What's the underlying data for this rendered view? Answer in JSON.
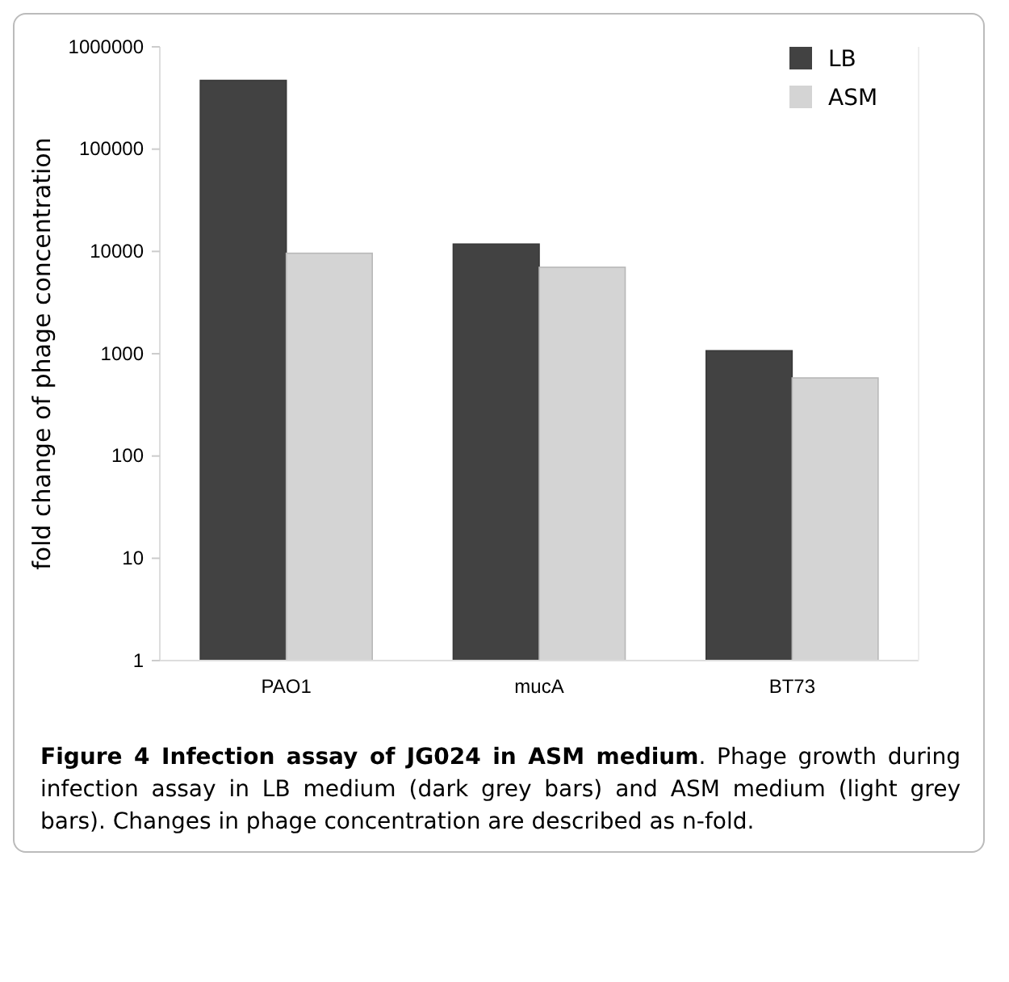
{
  "chart_data": {
    "type": "bar",
    "title": "Figure 4 Infection assay of JG024 in ASM medium",
    "annotations": [
      ". Phage growth during infection assay in LB medium (dark grey bars) and ASM medium (light grey bars). Changes in phage concentration are described as n-fold."
    ],
    "ylabel": "fold change of phage concentration",
    "categories": [
      "PAO1",
      "mucA",
      "BT73"
    ],
    "series": [
      {
        "name": "LB",
        "color": "#424242",
        "values": [
          470000,
          11800,
          1070
        ]
      },
      {
        "name": "ASM",
        "color": "#d4d4d4",
        "values": [
          9600,
          7000,
          580
        ]
      }
    ],
    "log": true,
    "ylim": [
      1,
      1000000
    ],
    "yticks": [
      1,
      10,
      100,
      1000,
      10000,
      100000,
      1000000
    ],
    "legend": "top right",
    "grid": false
  }
}
